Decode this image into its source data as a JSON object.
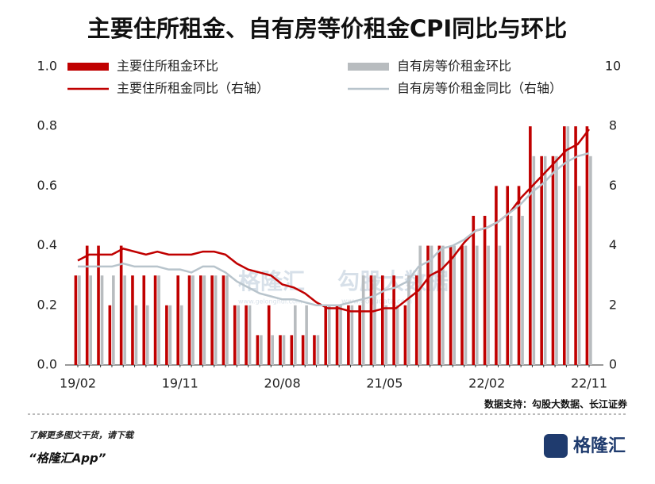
{
  "chart_data": {
    "type": "bar",
    "title": "主要住所租金、自有房等价租金CPI同比与环比",
    "categories": [
      "19/02",
      null,
      null,
      null,
      null,
      null,
      null,
      null,
      null,
      "19/11",
      null,
      null,
      null,
      null,
      null,
      null,
      null,
      null,
      "20/08",
      null,
      null,
      null,
      null,
      null,
      null,
      null,
      null,
      "21/05",
      null,
      null,
      null,
      null,
      null,
      null,
      null,
      null,
      "22/02",
      null,
      null,
      null,
      null,
      null,
      null,
      null,
      null,
      "22/11"
    ],
    "series": [
      {
        "name": "主要住所租金环比",
        "type": "bar",
        "color": "#c00000",
        "values": [
          0.3,
          0.4,
          0.4,
          0.2,
          0.4,
          0.3,
          0.3,
          0.3,
          0.2,
          0.3,
          0.3,
          0.3,
          0.3,
          0.3,
          0.2,
          0.2,
          0.1,
          0.2,
          0.1,
          0.1,
          0.1,
          0.1,
          0.2,
          0.2,
          0.2,
          0.2,
          0.3,
          0.3,
          0.3,
          0.2,
          0.3,
          0.4,
          0.4,
          0.4,
          0.4,
          0.5,
          0.5,
          0.6,
          0.6,
          0.6,
          0.8,
          0.7,
          0.7,
          0.8,
          0.8,
          0.8
        ]
      },
      {
        "name": "自有房等价租金环比",
        "type": "bar",
        "color": "#b8bcbf",
        "values": [
          0.3,
          0.3,
          0.3,
          0.3,
          0.3,
          0.2,
          0.2,
          0.3,
          0.2,
          0.2,
          0.3,
          0.3,
          0.3,
          0.3,
          0.2,
          0.2,
          0.1,
          0.1,
          0.1,
          0.2,
          0.2,
          0.1,
          0.2,
          0.2,
          0.2,
          0.3,
          0.3,
          0.2,
          0.2,
          0.3,
          0.4,
          0.4,
          0.4,
          0.4,
          0.4,
          0.4,
          0.4,
          0.4,
          0.5,
          0.5,
          0.7,
          0.7,
          0.7,
          0.8,
          0.6,
          0.7
        ]
      },
      {
        "name": "主要住所租金同比（右轴）",
        "type": "line",
        "axis": "y2",
        "color": "#c00000",
        "values": [
          3.5,
          3.7,
          3.7,
          3.7,
          3.9,
          3.8,
          3.7,
          3.8,
          3.7,
          3.7,
          3.7,
          3.8,
          3.8,
          3.7,
          3.4,
          3.2,
          3.1,
          3.0,
          2.7,
          2.6,
          2.4,
          2.1,
          1.9,
          1.9,
          1.8,
          1.8,
          1.8,
          1.9,
          1.9,
          2.2,
          2.5,
          3.0,
          3.2,
          3.6,
          4.1,
          4.5,
          4.6,
          4.8,
          5.1,
          5.6,
          6.0,
          6.4,
          6.8,
          7.2,
          7.4,
          7.9
        ]
      },
      {
        "name": "自有房等价租金同比（右轴）",
        "type": "line",
        "axis": "y2",
        "color": "#b8c4cc",
        "values": [
          3.3,
          3.3,
          3.3,
          3.3,
          3.4,
          3.3,
          3.3,
          3.3,
          3.2,
          3.2,
          3.1,
          3.3,
          3.3,
          3.1,
          2.8,
          2.6,
          2.4,
          2.3,
          2.2,
          2.2,
          2.1,
          2.0,
          2.0,
          2.0,
          2.1,
          2.2,
          2.3,
          2.5,
          2.6,
          2.8,
          3.3,
          3.5,
          3.9,
          4.0,
          4.2,
          4.5,
          4.6,
          4.8,
          5.1,
          5.4,
          5.8,
          6.1,
          6.5,
          6.8,
          7.0,
          7.1
        ]
      }
    ],
    "ylim": [
      0,
      1
    ],
    "yticks": [
      {
        "value": 0,
        "label": "0.0"
      },
      0.2,
      0.4,
      0.6,
      0.8,
      {
        "value": 1,
        "label": "1.0"
      }
    ],
    "y2lim": [
      0,
      10
    ],
    "y2ticks": [
      0,
      2,
      4,
      6,
      8,
      10
    ],
    "source": "数据支持：勾股大数据、长江证券",
    "watermark": [
      "格隆汇",
      "www.gelonghui.com",
      "勾股大数据",
      "www.gogudata.com"
    ]
  },
  "footer": {
    "note": "了解更多图文干货，请下载",
    "app": "“格隆汇App”",
    "logo": "格隆汇"
  }
}
